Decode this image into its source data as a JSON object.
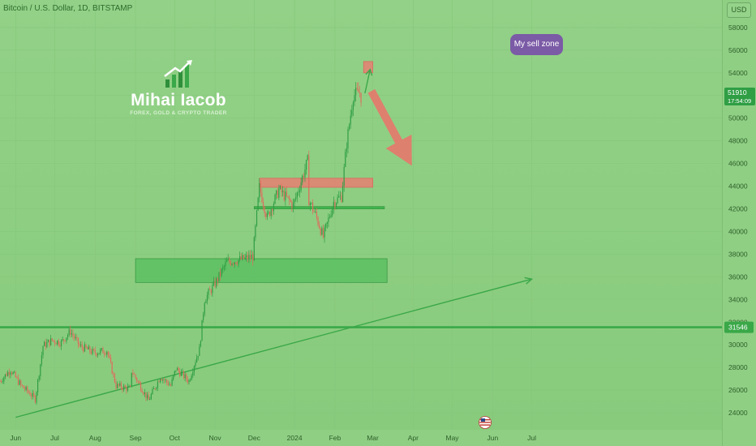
{
  "chart_title": "Bitcoin / U.S. Dollar, 1D, BITSTAMP",
  "currency": "USD",
  "logo": {
    "name": "Mihai Iacob",
    "tagline": "FOREX, GOLD & CRYPTO TRADER"
  },
  "colors": {
    "background": "#8fcf84",
    "candle_up": "#2f9e44",
    "candle_down": "#e06b5d",
    "zone_green": "#5cbf62",
    "zone_red": "#e77f72",
    "level_line": "#3aa848",
    "label_purple": "#7b5aa6"
  },
  "annotations": {
    "sell_zone_label": "My sell zone",
    "current_price": "51910",
    "countdown": "17:54:09",
    "level_price": "31546"
  },
  "chart_data": {
    "type": "candlestick",
    "title": "Bitcoin / U.S. Dollar, 1D, BITSTAMP",
    "x_axis_labels": [
      "Jun",
      "Jul",
      "Aug",
      "Sep",
      "Oct",
      "Nov",
      "Dec",
      "2024",
      "Feb",
      "Mar",
      "Apr",
      "May",
      "Jun",
      "Jul"
    ],
    "y_ticks": [
      24000,
      26000,
      28000,
      30000,
      32000,
      34000,
      36000,
      38000,
      40000,
      42000,
      44000,
      46000,
      48000,
      50000,
      52000,
      54000,
      56000,
      58000
    ],
    "y_range": [
      22500,
      60000
    ],
    "price_path": [
      [
        "2023-05-20",
        26800
      ],
      [
        "2023-05-28",
        27800
      ],
      [
        "2023-06-05",
        26400
      ],
      [
        "2023-06-12",
        25700
      ],
      [
        "2023-06-16",
        25200
      ],
      [
        "2023-06-22",
        29900
      ],
      [
        "2023-06-29",
        30400
      ],
      [
        "2023-07-06",
        30200
      ],
      [
        "2023-07-13",
        31200
      ],
      [
        "2023-07-20",
        29900
      ],
      [
        "2023-07-31",
        29300
      ],
      [
        "2023-08-10",
        29500
      ],
      [
        "2023-08-17",
        26400
      ],
      [
        "2023-08-28",
        26100
      ],
      [
        "2023-08-29",
        27700
      ],
      [
        "2023-09-11",
        25100
      ],
      [
        "2023-09-20",
        27200
      ],
      [
        "2023-09-28",
        26400
      ],
      [
        "2023-10-02",
        27900
      ],
      [
        "2023-10-12",
        26800
      ],
      [
        "2023-10-16",
        28300
      ],
      [
        "2023-10-20",
        29600
      ],
      [
        "2023-10-24",
        34000
      ],
      [
        "2023-11-01",
        35400
      ],
      [
        "2023-11-10",
        37300
      ],
      [
        "2023-11-20",
        37500
      ],
      [
        "2023-11-30",
        37800
      ],
      [
        "2023-12-05",
        43900
      ],
      [
        "2023-12-11",
        41200
      ],
      [
        "2023-12-20",
        43700
      ],
      [
        "2023-12-31",
        42300
      ],
      [
        "2024-01-11",
        46200
      ],
      [
        "2024-01-12",
        42800
      ],
      [
        "2024-01-18",
        41200
      ],
      [
        "2024-01-23",
        39500
      ],
      [
        "2024-01-31",
        42600
      ],
      [
        "2024-02-06",
        43100
      ],
      [
        "2024-02-10",
        47800
      ],
      [
        "2024-02-15",
        52000
      ],
      [
        "2024-02-20",
        52300
      ],
      [
        "2024-02-21",
        51910
      ]
    ],
    "zones": [
      {
        "name": "demand zone",
        "from_date": "2023-09-01",
        "to_date": "2024-03-12",
        "low": 35500,
        "high": 37600,
        "color": "#5cbf62"
      },
      {
        "name": "resistance zone",
        "from_date": "2023-12-05",
        "to_date": "2024-03-01",
        "low": 43900,
        "high": 44700,
        "color": "#e77f72"
      },
      {
        "name": "My sell zone",
        "from_date": "2024-02-23",
        "to_date": "2024-03-01",
        "low": 54000,
        "high": 55000,
        "color": "#e77f72"
      }
    ],
    "support_line": {
      "from_date": "2023-12-01",
      "to_date": "2024-03-10",
      "value": 42100
    },
    "horizontal_level": 31546,
    "trendline": {
      "from": [
        "2023-06-01",
        23600
      ],
      "to": [
        "2024-07-01",
        35800
      ]
    },
    "last_price": 51910,
    "arrows": [
      {
        "from": [
          "2024-02-24",
          52200
        ],
        "to": [
          "2024-02-28",
          54300
        ]
      },
      {
        "from": [
          "2024-02-29",
          52400
        ],
        "to": [
          "2024-03-31",
          45800
        ]
      }
    ]
  }
}
